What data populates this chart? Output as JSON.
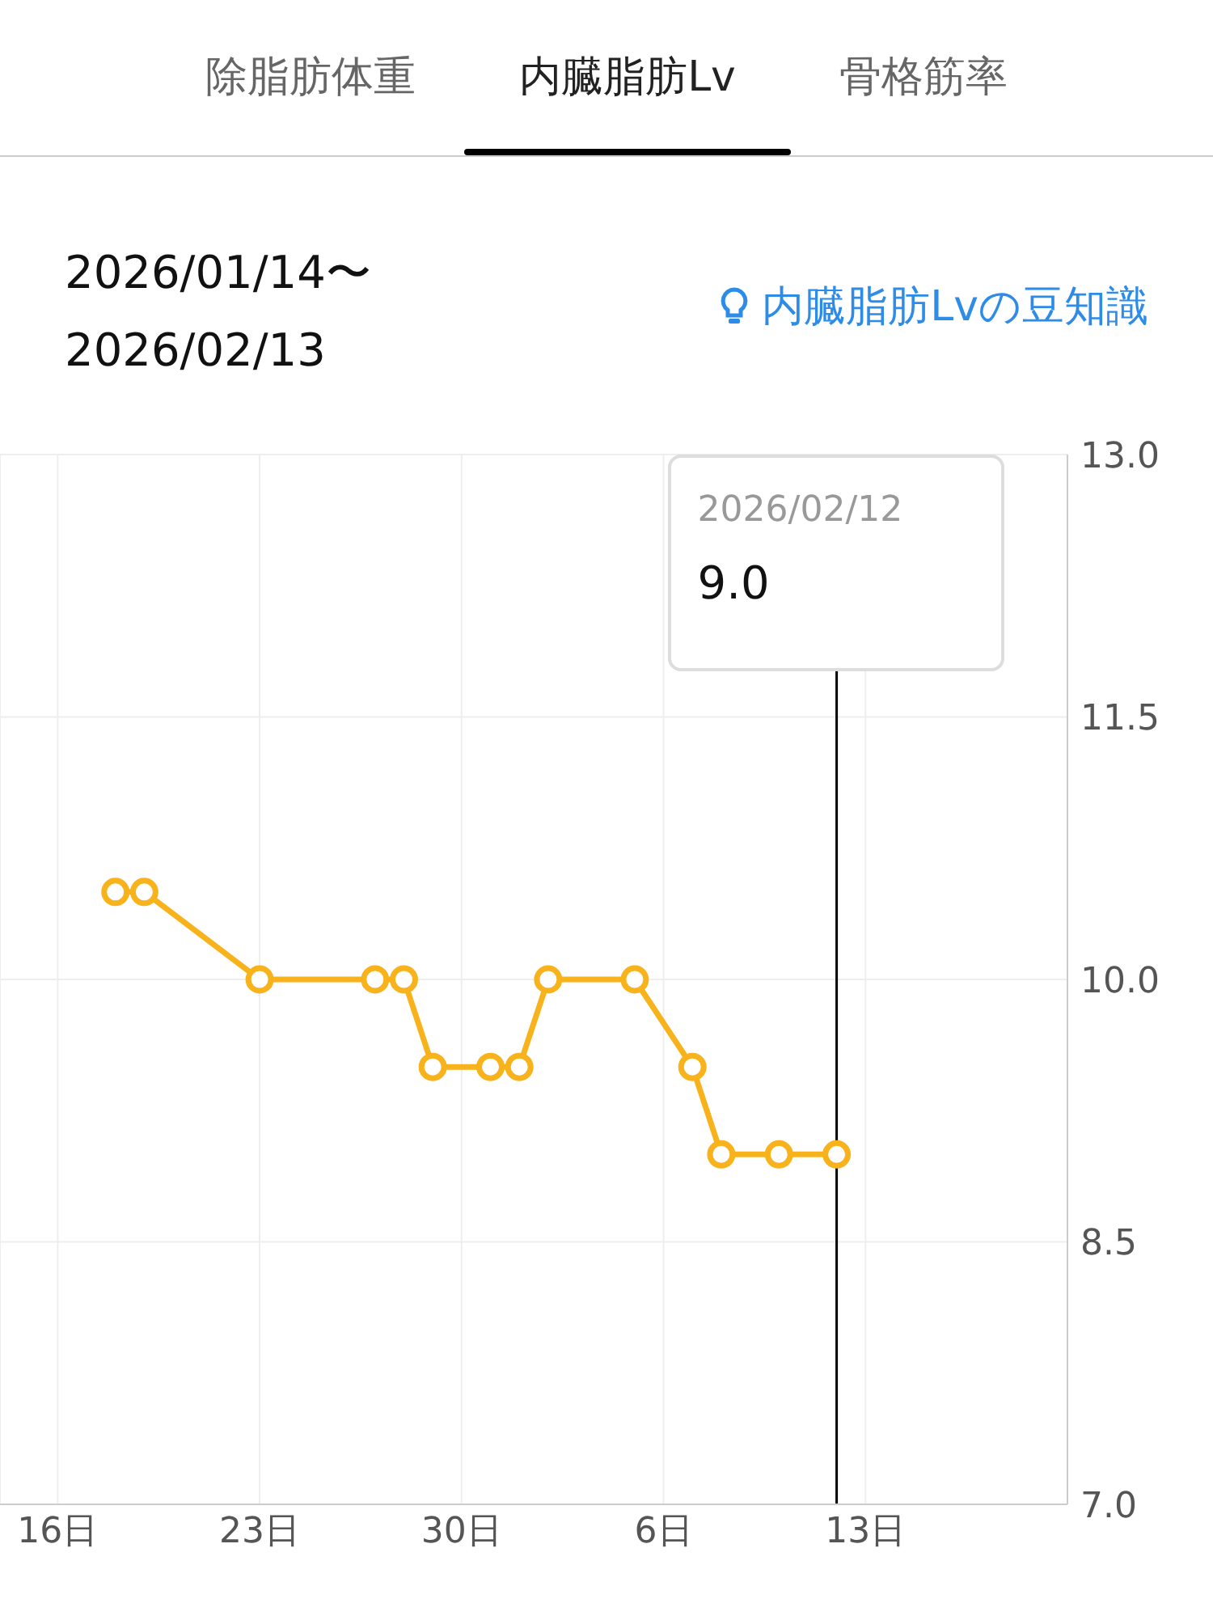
{
  "chart_data": {
    "type": "line",
    "title": "内臓脂肪Lv",
    "subtitle": "2026/01/14〜\n2026/02/13",
    "annotations": [
      "除脂肪体重",
      "骨格筋率",
      "内臓脂肪Lvの豆知識",
      "2026/02/12",
      "9.0"
    ],
    "x": [
      "2026-01-18",
      "2026-01-19",
      "2026-01-23",
      "2026-01-27",
      "2026-01-28",
      "2026-01-29",
      "2026-01-31",
      "2026-02-01",
      "2026-02-02",
      "2026-02-05",
      "2026-02-07",
      "2026-02-08",
      "2026-02-10",
      "2026-02-12"
    ],
    "series": [
      {
        "color": "#f7b21c",
        "values": [
          10.5,
          10.5,
          10.0,
          10.0,
          10.0,
          9.5,
          9.5,
          9.5,
          10.0,
          10.0,
          9.5,
          9.0,
          9.0,
          9.0
        ]
      }
    ],
    "xlim": [
      "2026-01-14",
      "2026-02-20"
    ],
    "xticks": [
      {
        "value": "2026-01-16",
        "label": "16日"
      },
      {
        "value": "2026-01-23",
        "label": "23日"
      },
      {
        "value": "2026-01-30",
        "label": "30日"
      },
      {
        "value": "2026-02-06",
        "label": "6日"
      },
      {
        "value": "2026-02-13",
        "label": "13日"
      }
    ],
    "ylim": [
      7,
      13
    ],
    "yticks": [
      {
        "value": 7,
        "label": "7.0"
      },
      {
        "value": 8.5,
        "label": "8.5"
      },
      {
        "value": 10,
        "label": "10.0"
      },
      {
        "value": 11.5,
        "label": "11.5"
      },
      {
        "value": 13,
        "label": "13.0"
      }
    ],
    "ref_lines": [
      {
        "axis": "x",
        "value": "2026-02-12",
        "color": "#000000"
      }
    ],
    "grid": true,
    "marker": "circle",
    "line_style": "solid",
    "legend": false
  }
}
